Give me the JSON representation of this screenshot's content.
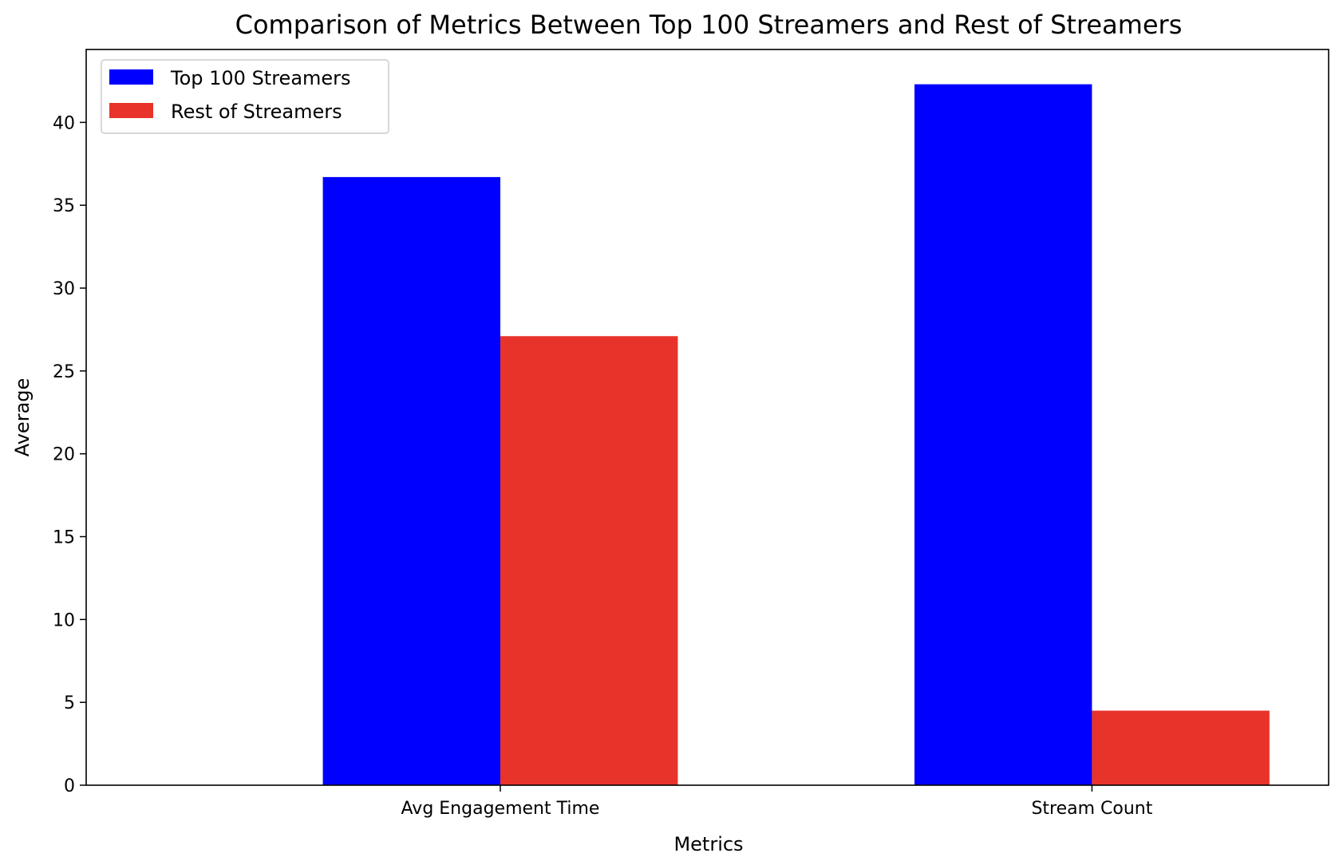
{
  "chart_data": {
    "type": "bar",
    "title": "Comparison of Metrics Between Top 100 Streamers and Rest of Streamers",
    "xlabel": "Metrics",
    "ylabel": "Average",
    "categories": [
      "Avg Engagement Time",
      "Stream Count"
    ],
    "series": [
      {
        "name": "Top 100 Streamers",
        "color": "#0000ff",
        "values": [
          36.7,
          42.3
        ]
      },
      {
        "name": "Rest of Streamers",
        "color": "#e8332a",
        "values": [
          27.1,
          4.5
        ]
      }
    ],
    "ylim": [
      0,
      44.4
    ],
    "yticks": [
      0,
      5,
      10,
      15,
      20,
      25,
      30,
      35,
      40
    ],
    "grid": false,
    "legend": "upper-left"
  }
}
